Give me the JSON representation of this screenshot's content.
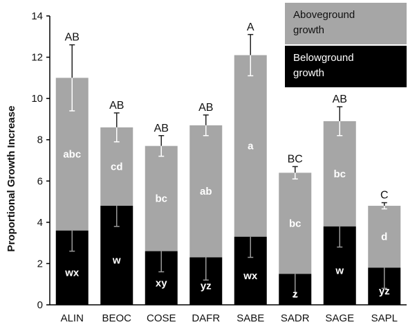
{
  "chart_data": {
    "type": "bar",
    "stacked": true,
    "ylabel": "Proportional Growth Increase",
    "ylim": [
      0,
      14
    ],
    "yticks": [
      "0",
      "2",
      "4",
      "6",
      "8",
      "10",
      "12",
      "14"
    ],
    "categories": [
      "ALIN",
      "BEOC",
      "COSE",
      "DAFR",
      "SABE",
      "SADR",
      "SAGE",
      "SAPL"
    ],
    "series": [
      {
        "name": "Belowground growth",
        "color": "#000000",
        "values": [
          3.6,
          4.8,
          2.6,
          2.3,
          3.3,
          1.5,
          3.8,
          1.8
        ],
        "error_low": [
          2.6,
          3.8,
          1.6,
          1.2,
          2.3,
          0.4,
          2.8,
          0.8
        ],
        "letters": [
          "wx",
          "w",
          "xy",
          "yz",
          "wx",
          "z",
          "w",
          "yz"
        ]
      },
      {
        "name": "Aboveground growth",
        "color": "#a6a6a6",
        "values": [
          7.4,
          3.8,
          5.1,
          6.4,
          8.8,
          4.9,
          5.1,
          3.0
        ],
        "letters": [
          "abc",
          "cd",
          "bc",
          "ab",
          "a",
          "bc",
          "bc",
          "d"
        ]
      }
    ],
    "totals": [
      11.0,
      8.6,
      7.7,
      8.7,
      12.1,
      6.4,
      8.9,
      4.8
    ],
    "error_high": [
      12.6,
      9.3,
      8.2,
      9.2,
      13.1,
      6.7,
      9.6,
      4.95
    ],
    "top_letters": [
      "AB",
      "AB",
      "AB",
      "AB",
      "A",
      "BC",
      "AB",
      "C"
    ],
    "legend": [
      {
        "label_lines": [
          "Aboveground",
          "growth"
        ],
        "color": "#a6a6a6"
      },
      {
        "label_lines": [
          "Belowground",
          "growth"
        ],
        "color": "#000000"
      }
    ],
    "legend_position": "top-right",
    "grid": false
  }
}
